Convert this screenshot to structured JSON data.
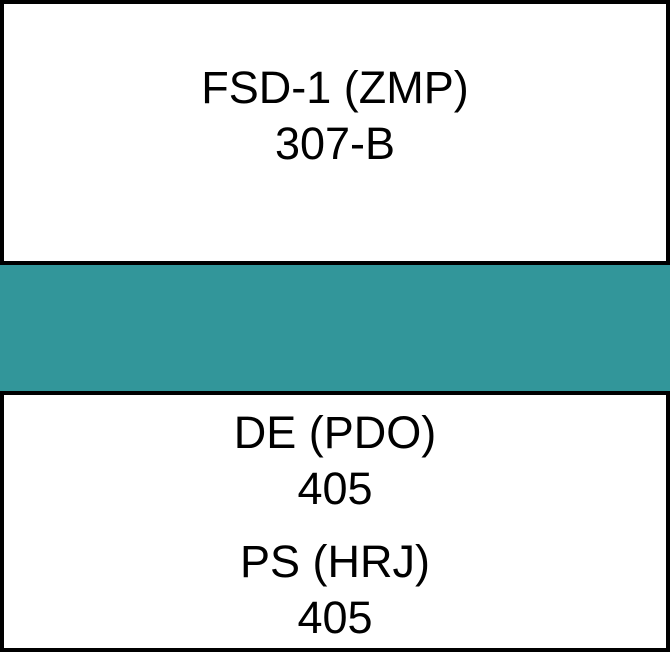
{
  "cells": [
    {
      "line1": "FSD-1 (ZMP)",
      "line2": "307-B"
    },
    {
      "line1": "DE (PDO)",
      "line2": "405"
    },
    {
      "line1": "PS (HRJ)",
      "line2": "405"
    }
  ],
  "colors": {
    "band": "#32969a",
    "border": "#000000",
    "cell_background": "#ffffff",
    "text": "#000000"
  }
}
